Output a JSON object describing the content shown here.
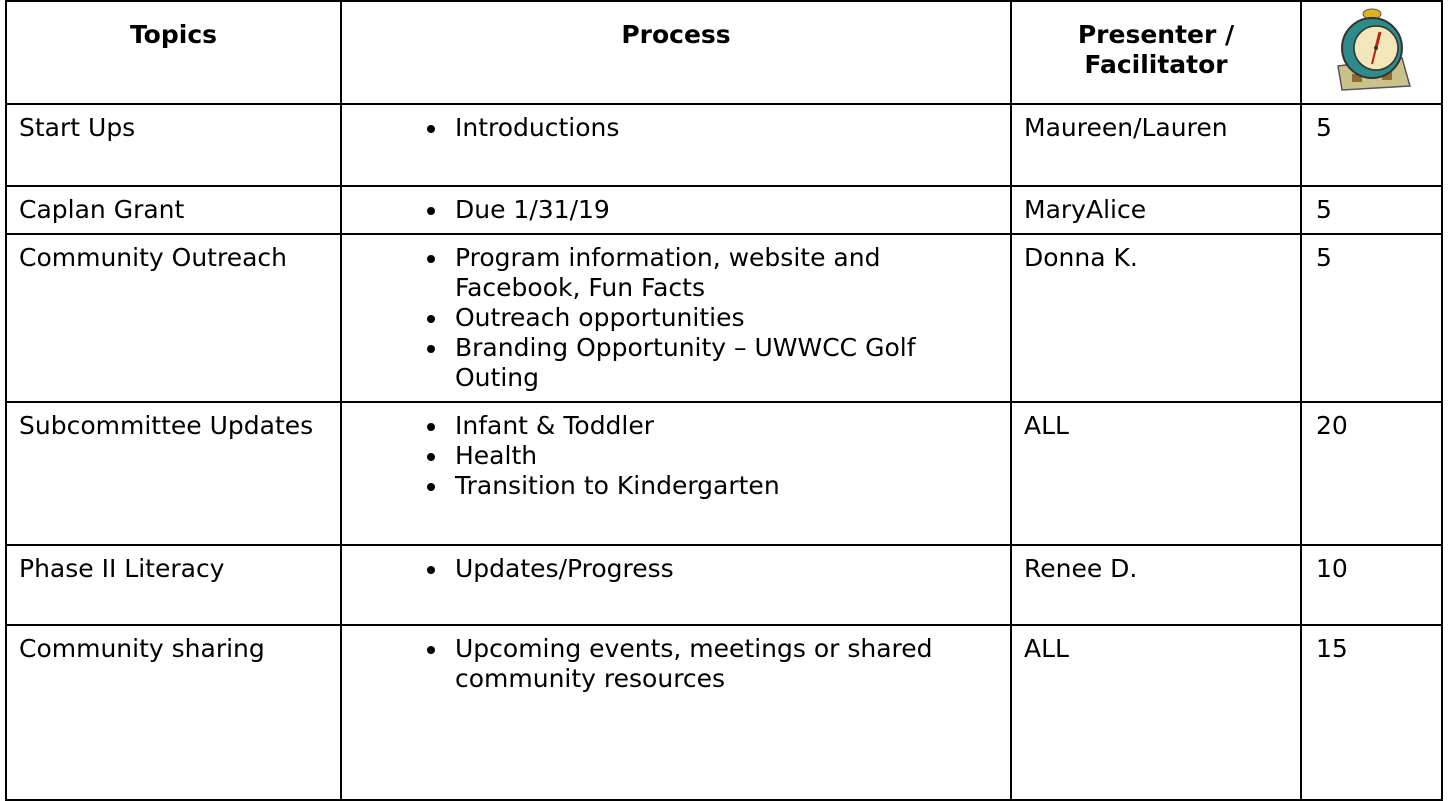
{
  "header": {
    "topics": "Topics",
    "process": "Process",
    "presenter": "Presenter / Facilitator"
  },
  "table": {
    "rows": [
      {
        "topic": "Start Ups",
        "process": [
          "Introductions"
        ],
        "presenter": "Maureen/Lauren",
        "minutes": 5
      },
      {
        "topic": "Caplan Grant",
        "process": [
          "Due 1/31/19"
        ],
        "presenter": "MaryAlice",
        "minutes": 5
      },
      {
        "topic": "Community Outreach",
        "process": [
          "Program information, website and Facebook, Fun Facts",
          "Outreach opportunities",
          "Branding Opportunity – UWWCC Golf Outing"
        ],
        "presenter": "Donna K.",
        "minutes": 5
      },
      {
        "topic": "Subcommittee Updates",
        "process": [
          "Infant & Toddler",
          "Health",
          "Transition to Kindergarten"
        ],
        "presenter": "ALL",
        "minutes": 20
      },
      {
        "topic": "Phase II Literacy",
        "process": [
          "Updates/Progress"
        ],
        "presenter": "Renee D.",
        "minutes": 10
      },
      {
        "topic": "Community sharing",
        "process": [
          "Upcoming events, meetings or shared community resources"
        ],
        "presenter": "ALL",
        "minutes": 15
      }
    ]
  }
}
